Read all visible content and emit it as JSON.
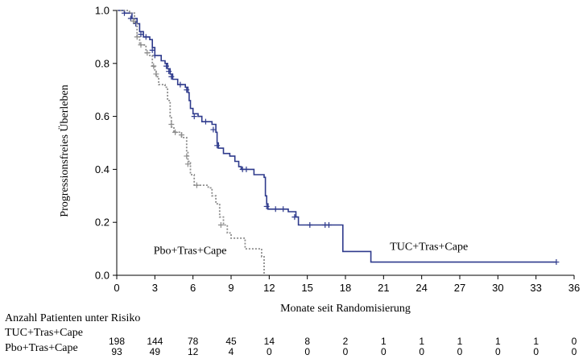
{
  "chart_data": {
    "type": "line",
    "subtype": "kaplan-meier-step",
    "ylabel": "Progressionsfreies Überleben",
    "xlabel": "Monate seit Randomisierung",
    "xlim": [
      0,
      36
    ],
    "ylim": [
      0,
      1.0
    ],
    "xticks": [
      0,
      3,
      6,
      9,
      12,
      15,
      18,
      21,
      24,
      27,
      30,
      33,
      36
    ],
    "yticks": [
      "0.0",
      "0.2",
      "0.4",
      "0.6",
      "0.8",
      "1.0"
    ],
    "grid": false,
    "series": [
      {
        "name": "TUC+Tras+Cape",
        "color": "#2e3a8c",
        "style": "solid",
        "points": [
          [
            0,
            1.0
          ],
          [
            0.6,
            0.99
          ],
          [
            1.2,
            0.97
          ],
          [
            1.6,
            0.95
          ],
          [
            1.8,
            0.92
          ],
          [
            2.1,
            0.9
          ],
          [
            2.6,
            0.89
          ],
          [
            2.8,
            0.86
          ],
          [
            3.0,
            0.83
          ],
          [
            3.5,
            0.81
          ],
          [
            3.8,
            0.8
          ],
          [
            4.0,
            0.78
          ],
          [
            4.2,
            0.76
          ],
          [
            4.4,
            0.74
          ],
          [
            4.8,
            0.72
          ],
          [
            5.4,
            0.71
          ],
          [
            5.6,
            0.69
          ],
          [
            5.7,
            0.66
          ],
          [
            5.8,
            0.63
          ],
          [
            6.0,
            0.61
          ],
          [
            6.4,
            0.6
          ],
          [
            6.7,
            0.58
          ],
          [
            7.5,
            0.57
          ],
          [
            7.8,
            0.54
          ],
          [
            7.9,
            0.5
          ],
          [
            8.0,
            0.48
          ],
          [
            8.4,
            0.46
          ],
          [
            8.9,
            0.45
          ],
          [
            9.3,
            0.43
          ],
          [
            9.6,
            0.41
          ],
          [
            9.8,
            0.4
          ],
          [
            10.8,
            0.38
          ],
          [
            11.6,
            0.37
          ],
          [
            11.7,
            0.3
          ],
          [
            11.8,
            0.27
          ],
          [
            11.9,
            0.25
          ],
          [
            13.5,
            0.24
          ],
          [
            14.1,
            0.22
          ],
          [
            14.3,
            0.19
          ],
          [
            17.8,
            0.09
          ],
          [
            20.0,
            0.05
          ],
          [
            34.6,
            0.05
          ]
        ],
        "censor_marks": [
          [
            0.6,
            0.99
          ],
          [
            1.1,
            0.97
          ],
          [
            1.5,
            0.95
          ],
          [
            1.9,
            0.91
          ],
          [
            2.3,
            0.9
          ],
          [
            2.8,
            0.85
          ],
          [
            3.0,
            0.83
          ],
          [
            3.9,
            0.79
          ],
          [
            4.1,
            0.77
          ],
          [
            4.3,
            0.75
          ],
          [
            5.0,
            0.72
          ],
          [
            5.5,
            0.7
          ],
          [
            6.1,
            0.6
          ],
          [
            7.0,
            0.58
          ],
          [
            7.6,
            0.55
          ],
          [
            7.9,
            0.49
          ],
          [
            9.9,
            0.4
          ],
          [
            10.2,
            0.4
          ],
          [
            11.8,
            0.26
          ],
          [
            12.5,
            0.25
          ],
          [
            13.1,
            0.25
          ],
          [
            14.0,
            0.22
          ],
          [
            15.2,
            0.19
          ],
          [
            16.4,
            0.19
          ],
          [
            16.7,
            0.19
          ],
          [
            34.6,
            0.05
          ]
        ],
        "label": "TUC+Tras+Cape"
      },
      {
        "name": "Pbo+Tras+Cape",
        "color": "#8c8c8c",
        "style": "dotted",
        "points": [
          [
            0,
            1.0
          ],
          [
            1.0,
            0.99
          ],
          [
            1.4,
            0.95
          ],
          [
            1.6,
            0.9
          ],
          [
            1.8,
            0.87
          ],
          [
            2.3,
            0.84
          ],
          [
            2.6,
            0.83
          ],
          [
            2.8,
            0.79
          ],
          [
            3.0,
            0.77
          ],
          [
            3.1,
            0.75
          ],
          [
            3.3,
            0.72
          ],
          [
            3.8,
            0.71
          ],
          [
            4.0,
            0.66
          ],
          [
            4.2,
            0.6
          ],
          [
            4.3,
            0.56
          ],
          [
            4.5,
            0.54
          ],
          [
            5.1,
            0.52
          ],
          [
            5.5,
            0.47
          ],
          [
            5.6,
            0.43
          ],
          [
            5.8,
            0.38
          ],
          [
            6.1,
            0.34
          ],
          [
            7.2,
            0.33
          ],
          [
            7.5,
            0.3
          ],
          [
            7.8,
            0.27
          ],
          [
            8.1,
            0.22
          ],
          [
            8.4,
            0.19
          ],
          [
            8.7,
            0.16
          ],
          [
            9.0,
            0.14
          ],
          [
            10.1,
            0.1
          ],
          [
            11.4,
            0.07
          ],
          [
            11.6,
            0.0
          ]
        ],
        "censor_marks": [
          [
            1.3,
            0.96
          ],
          [
            1.6,
            0.9
          ],
          [
            1.9,
            0.87
          ],
          [
            2.4,
            0.84
          ],
          [
            2.9,
            0.79
          ],
          [
            3.1,
            0.76
          ],
          [
            4.3,
            0.57
          ],
          [
            4.6,
            0.54
          ],
          [
            5.1,
            0.53
          ],
          [
            5.5,
            0.45
          ],
          [
            5.6,
            0.42
          ],
          [
            6.3,
            0.34
          ],
          [
            8.2,
            0.19
          ]
        ],
        "label": "Pbo+Tras+Cape"
      }
    ]
  },
  "risk_table": {
    "header": "Anzahl Patienten unter Risiko",
    "rows": [
      {
        "label": "TUC+Tras+Cape",
        "values": [
          "198",
          "144",
          "78",
          "45",
          "14",
          "8",
          "2",
          "1",
          "1",
          "1",
          "1",
          "1",
          "0"
        ]
      },
      {
        "label": "Pbo+Tras+Cape",
        "values": [
          "93",
          "49",
          "12",
          "4",
          "0",
          "0",
          "0",
          "0",
          "0",
          "0",
          "0",
          "0",
          "0"
        ]
      }
    ]
  }
}
